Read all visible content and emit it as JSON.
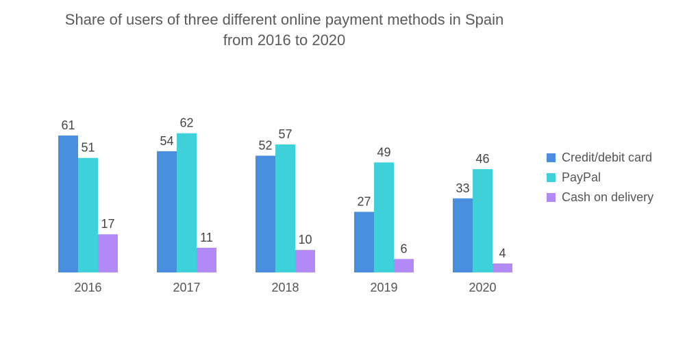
{
  "chart_data": {
    "type": "bar",
    "title_line1": "Share of users of three different online payment methods in Spain",
    "title_line2": "from 2016 to 2020",
    "xlabel": "",
    "ylabel": "",
    "ylim": [
      0,
      70
    ],
    "grid": false,
    "legend_position": "right",
    "categories": [
      "2016",
      "2017",
      "2018",
      "2019",
      "2020"
    ],
    "series": [
      {
        "name": "Credit/debit card",
        "color": "#4a8ee0",
        "values": [
          61,
          54,
          52,
          27,
          33
        ]
      },
      {
        "name": "PayPal",
        "color": "#3fd1d9",
        "values": [
          51,
          62,
          57,
          49,
          46
        ]
      },
      {
        "name": "Cash on delivery",
        "color": "#b28af7",
        "values": [
          17,
          11,
          10,
          6,
          4
        ]
      }
    ]
  }
}
